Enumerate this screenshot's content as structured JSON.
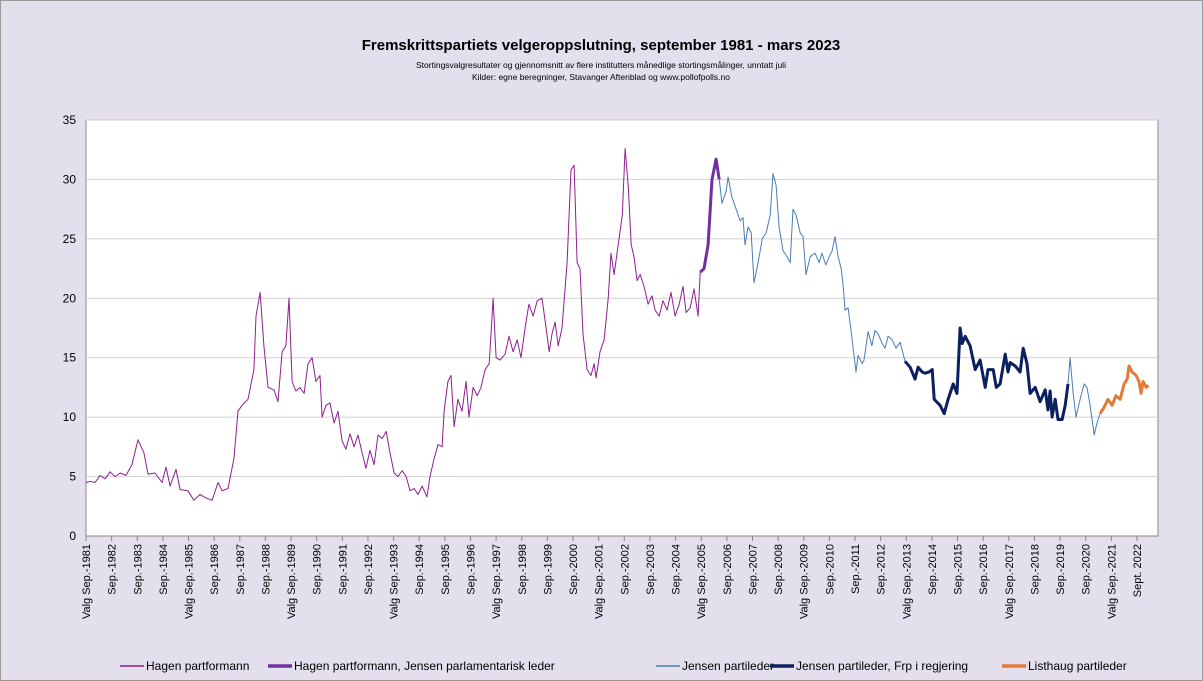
{
  "chart_data": {
    "type": "line",
    "title": "Fremskrittspartiets velgeroppslutning, september 1981 - mars 2023",
    "subtitle": "Stortingsvalgresultater og gjennomsnitt av flere institutters månedlige stortingsmålinger, unntatt juli",
    "source": "Kilder: egne beregninger, Stavanger Aftenblad og www.pollofpolls.no",
    "xlim": [
      1981.67,
      2023.49
    ],
    "ylim": [
      0,
      35
    ],
    "yticks": [
      0,
      5,
      10,
      15,
      20,
      25,
      30,
      35
    ],
    "grid": true,
    "xticks": [
      {
        "value": 1981.67,
        "label": "Valg Sep.-1981"
      },
      {
        "value": 1982.67,
        "label": "Sep.-1982"
      },
      {
        "value": 1983.67,
        "label": "Sep.-1983"
      },
      {
        "value": 1984.67,
        "label": "Sep.-1984"
      },
      {
        "value": 1985.67,
        "label": "Valg Sep.-1985"
      },
      {
        "value": 1986.67,
        "label": "Sep.-1986"
      },
      {
        "value": 1987.67,
        "label": "Sep.-1987"
      },
      {
        "value": 1988.67,
        "label": "Sep.-1988"
      },
      {
        "value": 1989.67,
        "label": "Valg Sep.-1989"
      },
      {
        "value": 1990.67,
        "label": "Sep.-1990"
      },
      {
        "value": 1991.67,
        "label": "Sep.-1991"
      },
      {
        "value": 1992.67,
        "label": "Sep.-1992"
      },
      {
        "value": 1993.67,
        "label": "Valg Sep.-1993"
      },
      {
        "value": 1994.67,
        "label": "Sep.-1994"
      },
      {
        "value": 1995.67,
        "label": "Sep.-1995"
      },
      {
        "value": 1996.67,
        "label": "Sep.-1996"
      },
      {
        "value": 1997.67,
        "label": "Valg Sep.-1997"
      },
      {
        "value": 1998.67,
        "label": "Sep.-1998"
      },
      {
        "value": 1999.67,
        "label": "Sep.-1999"
      },
      {
        "value": 2000.67,
        "label": "Sep.-2000"
      },
      {
        "value": 2001.67,
        "label": "Valg Sep.-2001"
      },
      {
        "value": 2002.67,
        "label": "Sep.-2002"
      },
      {
        "value": 2003.67,
        "label": "Sep.-2003"
      },
      {
        "value": 2004.67,
        "label": "Sep.-2004"
      },
      {
        "value": 2005.67,
        "label": "Valg Sep.-2005"
      },
      {
        "value": 2006.67,
        "label": "Sep.-2006"
      },
      {
        "value": 2007.67,
        "label": "Sep.-2007"
      },
      {
        "value": 2008.67,
        "label": "Sep.-2008"
      },
      {
        "value": 2009.67,
        "label": "Valg Sep.-2009"
      },
      {
        "value": 2010.67,
        "label": "Sep.-2010"
      },
      {
        "value": 2011.67,
        "label": "Sep.-2011"
      },
      {
        "value": 2012.67,
        "label": "Sep.-2012"
      },
      {
        "value": 2013.67,
        "label": "Valg Sep.-2013"
      },
      {
        "value": 2014.67,
        "label": "Sep.-2014"
      },
      {
        "value": 2015.67,
        "label": "Sep.-2015"
      },
      {
        "value": 2016.67,
        "label": "Sep.-2016"
      },
      {
        "value": 2017.67,
        "label": "Valg Sep.-2017"
      },
      {
        "value": 2018.67,
        "label": "Sep.-2018"
      },
      {
        "value": 2019.67,
        "label": "Sep.-2019"
      },
      {
        "value": 2020.67,
        "label": "Sep.-2020"
      },
      {
        "value": 2021.67,
        "label": "Valg Sep.-2021"
      },
      {
        "value": 2022.67,
        "label": "Sept. 2022"
      }
    ],
    "series": [
      {
        "name": "Hagen partformann",
        "color": "#8e1f8e",
        "width": 1,
        "x": [
          1981.67,
          1981.83,
          1982.02,
          1982.22,
          1982.41,
          1982.61,
          1982.8,
          1983.0,
          1983.23,
          1983.46,
          1983.7,
          1983.93,
          1984.09,
          1984.36,
          1984.64,
          1984.79,
          1984.95,
          1985.18,
          1985.34,
          1985.65,
          1985.88,
          1986.12,
          1986.35,
          1986.59,
          1986.82,
          1986.98,
          1987.21,
          1987.44,
          1987.6,
          1987.76,
          1987.99,
          1988.22,
          1988.3,
          1988.46,
          1988.61,
          1988.77,
          1989.0,
          1989.16,
          1989.32,
          1989.47,
          1989.59,
          1989.71,
          1989.86,
          1990.02,
          1990.18,
          1990.33,
          1990.49,
          1990.64,
          1990.8,
          1990.88,
          1991.03,
          1991.19,
          1991.35,
          1991.5,
          1991.66,
          1991.81,
          1991.97,
          1992.13,
          1992.28,
          1992.44,
          1992.59,
          1992.75,
          1992.91,
          1993.06,
          1993.22,
          1993.38,
          1993.53,
          1993.69,
          1993.84,
          1994.0,
          1994.16,
          1994.31,
          1994.47,
          1994.62,
          1994.78,
          1994.97,
          1995.09,
          1995.25,
          1995.4,
          1995.56,
          1995.64,
          1995.79,
          1995.91,
          1996.03,
          1996.18,
          1996.34,
          1996.5,
          1996.61,
          1996.77,
          1996.93,
          1997.08,
          1997.24,
          1997.4,
          1997.55,
          1997.67,
          1997.82,
          1998.02,
          1998.17,
          1998.33,
          1998.49,
          1998.64,
          1998.8,
          1998.95,
          1999.11,
          1999.27,
          1999.46,
          1999.62,
          1999.74,
          1999.85,
          1999.97,
          2000.09,
          2000.24,
          2000.44,
          2000.59,
          2000.71,
          2000.83,
          2000.94,
          2001.06,
          2001.22,
          2001.37,
          2001.49,
          2001.57,
          2001.72,
          2001.88,
          2002.04,
          2002.15,
          2002.27,
          2002.43,
          2002.59,
          2002.7,
          2002.82,
          2002.94,
          2003.05,
          2003.17,
          2003.29,
          2003.44,
          2003.6,
          2003.75,
          2003.87,
          2004.03,
          2004.18,
          2004.34,
          2004.49,
          2004.65,
          2004.81,
          2004.96,
          2005.08,
          2005.24,
          2005.39,
          2005.55,
          2005.63
        ],
        "values": [
          4.5,
          4.6,
          4.5,
          5.1,
          4.8,
          5.4,
          5.0,
          5.3,
          5.1,
          6.0,
          8.1,
          7.0,
          5.2,
          5.3,
          4.5,
          5.8,
          4.2,
          5.6,
          3.9,
          3.8,
          3.0,
          3.5,
          3.2,
          3.0,
          4.5,
          3.8,
          4.0,
          6.5,
          10.5,
          11.0,
          11.5,
          14.0,
          18.5,
          20.5,
          16.0,
          12.5,
          12.3,
          11.3,
          15.5,
          16.0,
          20.0,
          13.0,
          12.2,
          12.5,
          12.0,
          14.5,
          15.0,
          13.0,
          13.5,
          10.0,
          11.0,
          11.2,
          9.5,
          10.5,
          8.0,
          7.3,
          8.6,
          7.5,
          8.5,
          7.0,
          5.7,
          7.2,
          6.0,
          8.5,
          8.2,
          8.8,
          7.0,
          5.3,
          5.0,
          5.5,
          5.0,
          3.8,
          4.0,
          3.5,
          4.2,
          3.3,
          5.0,
          6.5,
          7.7,
          7.5,
          10.5,
          13.0,
          13.5,
          9.2,
          11.5,
          10.5,
          13.0,
          10.0,
          12.5,
          11.8,
          12.5,
          14.0,
          14.5,
          20.0,
          15.0,
          14.8,
          15.3,
          16.8,
          15.5,
          16.5,
          15.0,
          17.5,
          19.5,
          18.5,
          19.8,
          20.0,
          17.5,
          15.5,
          17.0,
          18.0,
          16.0,
          17.5,
          23.0,
          30.8,
          31.2,
          23.0,
          22.5,
          17.0,
          14.0,
          13.5,
          14.5,
          13.3,
          15.5,
          16.5,
          20.0,
          23.8,
          22.0,
          24.5,
          27.0,
          32.6,
          29.5,
          24.5,
          23.5,
          21.5,
          22.0,
          21.0,
          19.5,
          20.2,
          19.0,
          18.5,
          19.8,
          19.0,
          20.5,
          18.5,
          19.5,
          21.0,
          18.8,
          19.2,
          20.8,
          18.5,
          22.2
        ]
      },
      {
        "name": "Hagen partformann, Jensen parlamentarisk leder",
        "color": "#7030a0",
        "width": 3,
        "x": [
          2005.63,
          2005.78,
          2005.94,
          2006.09,
          2006.25,
          2006.37
        ],
        "values": [
          22.2,
          22.5,
          24.5,
          30.0,
          31.7,
          30.0
        ]
      },
      {
        "name": "Jensen partileder",
        "color": "#4a7db3",
        "width": 1,
        "x": [
          2006.37,
          2006.48,
          2006.64,
          2006.72,
          2006.87,
          2007.03,
          2007.19,
          2007.3,
          2007.38,
          2007.5,
          2007.62,
          2007.73,
          2007.89,
          2008.05,
          2008.2,
          2008.36,
          2008.47,
          2008.59,
          2008.71,
          2008.86,
          2009.02,
          2009.14,
          2009.25,
          2009.37,
          2009.53,
          2009.64,
          2009.76,
          2009.92,
          2010.11,
          2010.27,
          2010.38,
          2010.53,
          2010.66,
          2010.78,
          2010.89,
          2011.01,
          2011.13,
          2011.21,
          2011.28,
          2011.4,
          2011.56,
          2011.71,
          2011.79,
          2011.95,
          2012.02,
          2012.18,
          2012.33,
          2012.45,
          2012.57,
          2012.73,
          2012.84,
          2012.96,
          2013.12,
          2013.27,
          2013.43,
          2013.62,
          2016.0,
          2019.98,
          2020.06,
          2020.18,
          2020.29,
          2020.45,
          2020.61,
          2020.72,
          2020.84,
          2021.0,
          2021.11,
          2021.23
        ],
        "values": [
          30.0,
          28.0,
          29.0,
          30.2,
          28.5,
          27.5,
          26.5,
          26.8,
          24.5,
          26.0,
          25.5,
          21.3,
          23.0,
          25.0,
          25.5,
          27.0,
          30.5,
          29.5,
          26.0,
          24.0,
          23.5,
          23.0,
          27.5,
          27.0,
          25.5,
          25.2,
          22.0,
          23.5,
          23.8,
          23.0,
          23.8,
          22.8,
          23.5,
          24.0,
          25.2,
          23.5,
          22.5,
          21.0,
          19.0,
          19.2,
          16.5,
          13.8,
          15.2,
          14.5,
          14.8,
          17.2,
          16.0,
          17.3,
          17.0,
          16.2,
          15.8,
          16.8,
          16.5,
          15.8,
          16.3,
          14.7,
          null,
          12.8,
          15.0,
          12.0,
          10.0,
          11.5,
          12.8,
          12.5,
          11.0,
          8.5,
          9.5,
          10.3
        ]
      },
      {
        "name": "Jensen partileder, Frp i regjering",
        "color": "#0c1f5e",
        "width": 3,
        "x": [
          2013.62,
          2013.82,
          2014.01,
          2014.13,
          2014.29,
          2014.4,
          2014.56,
          2014.68,
          2014.76,
          2014.99,
          2015.15,
          2015.3,
          2015.5,
          2015.65,
          2015.77,
          2015.85,
          2015.97,
          2016.16,
          2016.36,
          2016.55,
          2016.75,
          2016.86,
          2017.06,
          2017.18,
          2017.33,
          2017.53,
          2017.64,
          2017.72,
          2017.92,
          2018.11,
          2018.23,
          2018.38,
          2018.5,
          2018.7,
          2018.89,
          2019.09,
          2019.2,
          2019.28,
          2019.36,
          2019.48,
          2019.59,
          2019.75,
          2019.87,
          2019.98
        ],
        "values": [
          14.7,
          14.2,
          13.2,
          14.2,
          13.8,
          13.7,
          13.8,
          14.0,
          11.5,
          11.0,
          10.3,
          11.5,
          12.8,
          12.0,
          17.5,
          16.2,
          16.8,
          16.0,
          14.0,
          14.8,
          12.5,
          14.0,
          14.0,
          12.5,
          12.8,
          15.3,
          13.8,
          14.6,
          14.3,
          13.8,
          15.8,
          14.5,
          12.0,
          12.5,
          11.3,
          12.3,
          10.6,
          12.2,
          10.0,
          11.5,
          9.8,
          9.8,
          11.0,
          12.8
        ]
      },
      {
        "name": "Listhaug partileder",
        "color": "#e07b39",
        "width": 3,
        "x": [
          2021.23,
          2021.38,
          2021.54,
          2021.7,
          2021.85,
          2022.01,
          2022.17,
          2022.29,
          2022.36,
          2022.48,
          2022.64,
          2022.75,
          2022.83,
          2022.91,
          2023.03,
          2023.11
        ],
        "values": [
          10.3,
          10.8,
          11.5,
          11.0,
          11.8,
          11.5,
          12.8,
          13.2,
          14.3,
          13.8,
          13.5,
          13.0,
          12.0,
          13.0,
          12.5,
          12.7
        ]
      }
    ]
  }
}
